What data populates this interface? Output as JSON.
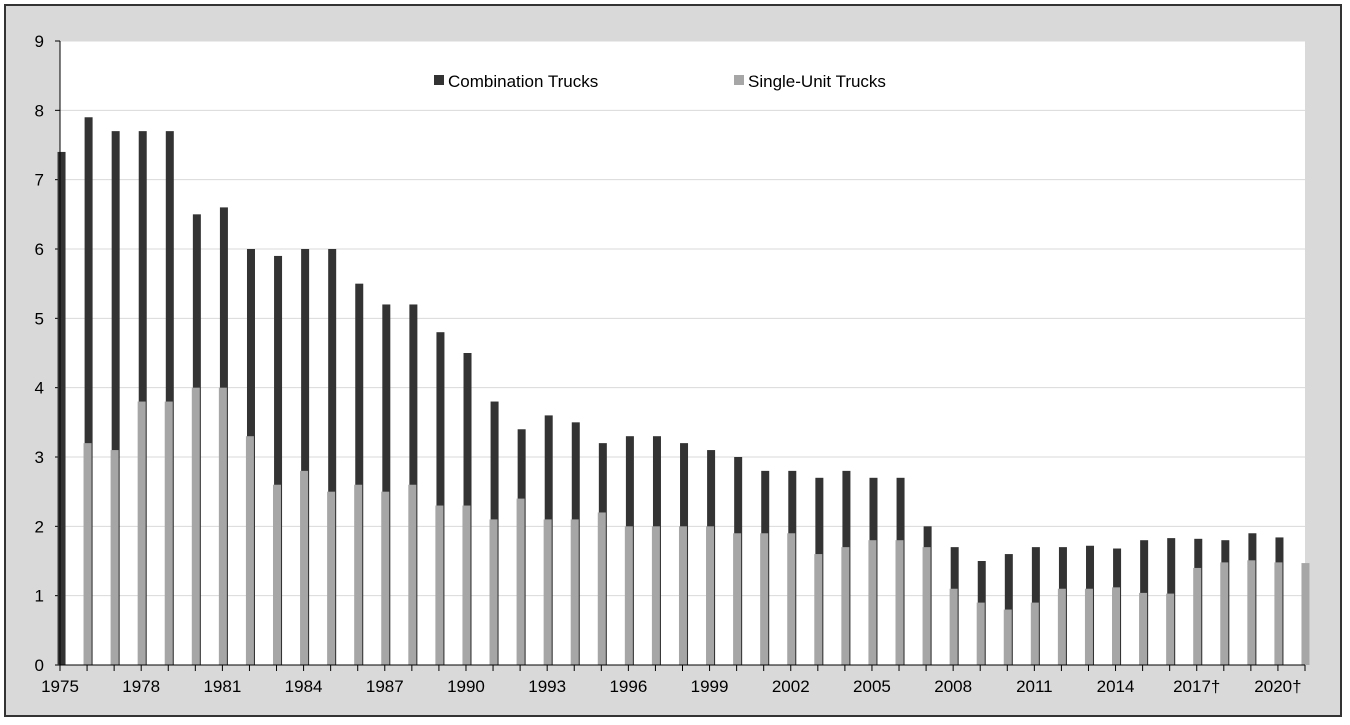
{
  "chart_data": {
    "type": "bar",
    "title": "",
    "xlabel": "",
    "ylabel": "",
    "ylim": [
      0,
      9
    ],
    "yticks": [
      0,
      1,
      2,
      3,
      4,
      5,
      6,
      7,
      8,
      9
    ],
    "grid": true,
    "legend_position": "top-center",
    "categories": [
      "1975",
      "1976",
      "1977",
      "1978",
      "1979",
      "1980",
      "1981",
      "1982",
      "1983",
      "1984",
      "1985",
      "1986",
      "1987",
      "1988",
      "1989",
      "1990",
      "1991",
      "1992",
      "1993",
      "1994",
      "1995",
      "1996",
      "1997",
      "1998",
      "1999",
      "2000",
      "2001",
      "2002",
      "2003",
      "2004",
      "2005",
      "2006",
      "2007",
      "2008",
      "2009",
      "2010",
      "2011",
      "2012",
      "2013",
      "2014",
      "2015",
      "2016",
      "2017†",
      "2018",
      "2019",
      "2020†"
    ],
    "x_tick_labels": [
      "1975",
      "1978",
      "1981",
      "1984",
      "1987",
      "1990",
      "1993",
      "1996",
      "1999",
      "2002",
      "2005",
      "2008",
      "2011",
      "2014",
      "2017†",
      "2020†"
    ],
    "series": [
      {
        "name": "Combination Trucks",
        "color": "#333333",
        "values": [
          7.4,
          7.9,
          7.7,
          7.7,
          7.7,
          6.5,
          6.6,
          6.0,
          5.9,
          6.0,
          6.0,
          5.5,
          5.2,
          5.2,
          4.8,
          4.5,
          3.8,
          3.4,
          3.6,
          3.5,
          3.2,
          3.3,
          3.3,
          3.2,
          3.1,
          3.0,
          2.8,
          2.8,
          2.7,
          2.8,
          2.7,
          2.7,
          2.0,
          1.7,
          1.5,
          1.6,
          1.7,
          1.7,
          1.72,
          1.68,
          1.8,
          1.83,
          1.82,
          1.8,
          1.9,
          1.84
        ]
      },
      {
        "name": "Single-Unit Trucks",
        "color": "#a6a6a6",
        "values": [
          3.2,
          3.1,
          3.8,
          3.8,
          4.0,
          4.0,
          3.3,
          2.6,
          2.8,
          2.5,
          2.6,
          2.5,
          2.6,
          2.3,
          2.3,
          2.1,
          2.4,
          2.1,
          2.1,
          2.2,
          2.0,
          2.0,
          2.0,
          2.0,
          1.9,
          1.9,
          1.9,
          1.6,
          1.7,
          1.8,
          1.8,
          1.7,
          1.1,
          0.9,
          0.8,
          0.9,
          1.1,
          1.1,
          1.12,
          1.04,
          1.03,
          1.4,
          1.48,
          1.51,
          1.48,
          1.47
        ]
      }
    ]
  }
}
